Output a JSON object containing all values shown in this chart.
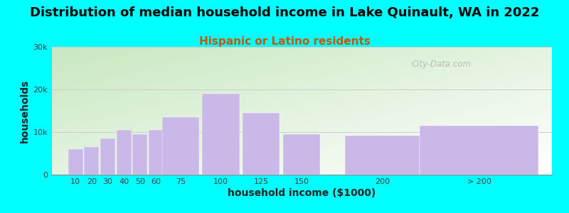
{
  "title": "Distribution of median household income in Lake Quinault, WA in 2022",
  "subtitle": "Hispanic or Latino residents",
  "xlabel": "household income ($1000)",
  "ylabel": "households",
  "bar_centers": [
    10,
    20,
    30,
    40,
    50,
    60,
    75,
    100,
    125,
    150,
    200,
    260
  ],
  "bar_widths": [
    10,
    10,
    10,
    10,
    10,
    10,
    25,
    25,
    25,
    25,
    50,
    80
  ],
  "bar_values": [
    6000,
    6500,
    8500,
    10500,
    9500,
    10500,
    13500,
    19000,
    14500,
    9500,
    9200,
    11500
  ],
  "bar_color": "#c9b8e8",
  "bar_edgecolor": "#c9b8e8",
  "background_color": "#00FFFF",
  "gradient_top_left": "#c8e8c0",
  "gradient_bottom_right": "#ffffff",
  "ylim": [
    0,
    30000
  ],
  "yticks": [
    0,
    10000,
    20000,
    30000
  ],
  "ytick_labels": [
    "0",
    "10k",
    "20k",
    "30k"
  ],
  "xlim": [
    -5,
    305
  ],
  "xtick_positions": [
    10,
    20,
    30,
    40,
    50,
    60,
    75,
    100,
    125,
    150,
    200,
    260
  ],
  "xtick_labels": [
    "10",
    "20",
    "30",
    "40",
    "50",
    "60",
    "75",
    "100",
    "125",
    "150",
    "200",
    "> 200"
  ],
  "title_fontsize": 13,
  "subtitle_fontsize": 11,
  "subtitle_color": "#cc5500",
  "axis_label_fontsize": 10,
  "tick_fontsize": 8,
  "watermark": "City-Data.com"
}
